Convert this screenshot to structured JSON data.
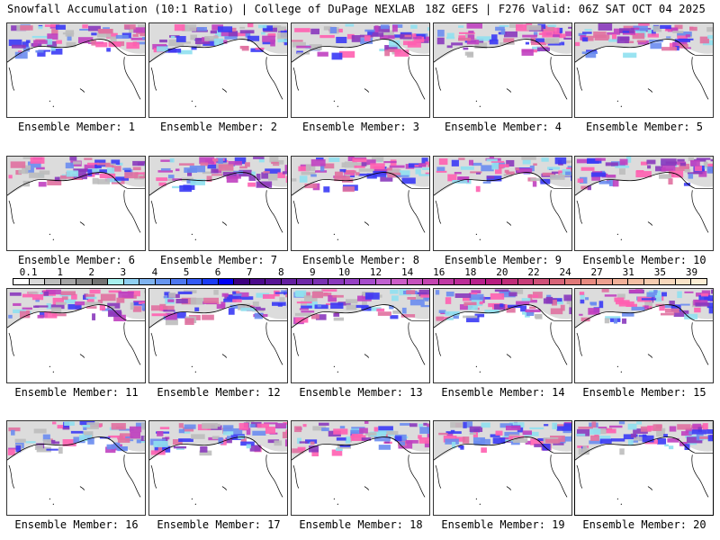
{
  "header": {
    "left_title": "Snowfall Accumulation (10:1 Ratio) | College of DuPage NEXLAB",
    "right_title": "18Z GEFS | F276 Valid: 06Z SAT OCT 04 2025"
  },
  "panels": [
    {
      "label": "Ensemble Member: 1"
    },
    {
      "label": "Ensemble Member: 2"
    },
    {
      "label": "Ensemble Member: 3"
    },
    {
      "label": "Ensemble Member: 4"
    },
    {
      "label": "Ensemble Member: 5"
    },
    {
      "label": "Ensemble Member: 6"
    },
    {
      "label": "Ensemble Member: 7"
    },
    {
      "label": "Ensemble Member: 8"
    },
    {
      "label": "Ensemble Member: 9"
    },
    {
      "label": "Ensemble Member: 10"
    },
    {
      "label": "Ensemble Member: 11"
    },
    {
      "label": "Ensemble Member: 12"
    },
    {
      "label": "Ensemble Member: 13"
    },
    {
      "label": "Ensemble Member: 14"
    },
    {
      "label": "Ensemble Member: 15"
    },
    {
      "label": "Ensemble Member: 16"
    },
    {
      "label": "Ensemble Member: 17"
    },
    {
      "label": "Ensemble Member: 18"
    },
    {
      "label": "Ensemble Member: 19"
    },
    {
      "label": "Ensemble Member: 20"
    }
  ],
  "colorbar": {
    "tick_labels": [
      "0.1",
      "1",
      "2",
      "3",
      "4",
      "5",
      "6",
      "7",
      "8",
      "9",
      "10",
      "12",
      "14",
      "16",
      "18",
      "20",
      "22",
      "24",
      "27",
      "31",
      "35",
      "39"
    ],
    "colors": [
      "#ffffff",
      "#d9d9d9",
      "#bdbdbd",
      "#a6a6a6",
      "#8c8c8c",
      "#737373",
      "#a6f0ee",
      "#8fd0f2",
      "#7fb3f0",
      "#6695f0",
      "#4d77f0",
      "#3359f5",
      "#1a3bf5",
      "#0000f5",
      "#3d0080",
      "#4b0a8c",
      "#571496",
      "#641ea0",
      "#6f28a8",
      "#7a30b2",
      "#8a38bc",
      "#9640c4",
      "#a64ccc",
      "#c060d0",
      "#cc5cc8",
      "#c650bc",
      "#c444b0",
      "#c038a4",
      "#bc2c98",
      "#b8208c",
      "#b81c80",
      "#c02c78",
      "#c83c78",
      "#d05078",
      "#d86478",
      "#e07878",
      "#e88a80",
      "#eea090",
      "#f2b098",
      "#f4bfa4",
      "#f6ccb0",
      "#f8d8bc",
      "#fae4c8",
      "#fceed4"
    ]
  }
}
